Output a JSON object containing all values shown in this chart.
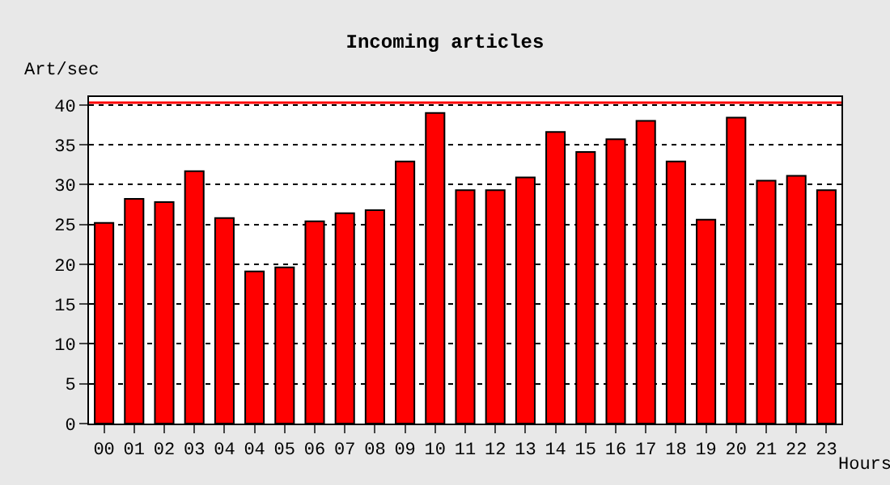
{
  "chart_data": {
    "type": "bar",
    "title": "Incoming articles",
    "xlabel": "Hours",
    "ylabel": "Art/sec",
    "categories": [
      "00",
      "01",
      "02",
      "03",
      "04",
      "04",
      "05",
      "06",
      "07",
      "08",
      "09",
      "10",
      "11",
      "12",
      "13",
      "14",
      "15",
      "16",
      "17",
      "18",
      "19",
      "20",
      "21",
      "22",
      "23"
    ],
    "values": [
      25.2,
      28.2,
      27.8,
      31.7,
      25.8,
      19.1,
      19.6,
      25.4,
      26.4,
      26.8,
      32.9,
      39.0,
      29.3,
      29.3,
      30.9,
      36.6,
      34.1,
      35.7,
      38.0,
      32.9,
      25.6,
      38.4,
      30.5,
      31.1,
      29.3
    ],
    "color": "#ff0000",
    "ylim": [
      0,
      41
    ],
    "yticks": [
      0,
      5,
      10,
      15,
      20,
      25,
      30,
      35,
      40
    ],
    "grid": "y",
    "ref_lines": [
      {
        "axis": "y",
        "value": 40.3,
        "color": "#ff0000"
      }
    ]
  }
}
